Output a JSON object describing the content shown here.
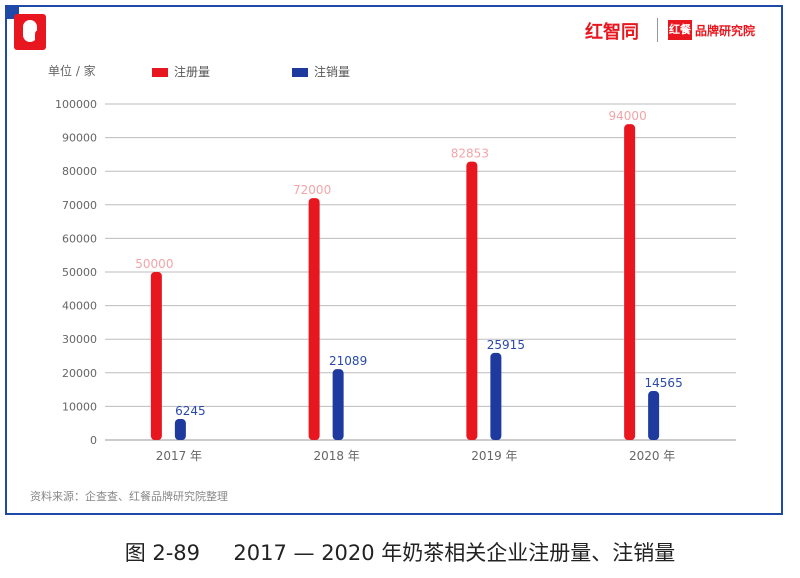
{
  "header": {
    "brand_a": "红智同",
    "brand_b_box": "红餐",
    "brand_b_text": "品牌研究院"
  },
  "unit_label": "单位 / 家",
  "source_note": "资料来源：企查查、红餐品牌研究院整理",
  "caption": "图 2-89     2017 — 2020 年奶茶相关企业注册量、注销量",
  "colors": {
    "registered": "#e8171f",
    "cancelled": "#1f3a9e",
    "frame": "#1f49a6"
  },
  "chart_data": {
    "type": "bar",
    "categories": [
      "2017 年",
      "2018 年",
      "2019 年",
      "2020 年"
    ],
    "series": [
      {
        "name": "注册量",
        "values": [
          50000,
          72000,
          82853,
          94000
        ],
        "labels": [
          "50000",
          "72000",
          "82853",
          "94000"
        ]
      },
      {
        "name": "注销量",
        "values": [
          6245,
          21089,
          25915,
          14565
        ],
        "labels": [
          "6245",
          "21089",
          "25915",
          "14565"
        ]
      }
    ],
    "ylim": [
      0,
      100000
    ],
    "yticks": [
      "0",
      "10000",
      "20000",
      "30000",
      "40000",
      "50000",
      "60000",
      "70000",
      "80000",
      "90000",
      "100000"
    ],
    "ytick_values": [
      0,
      10000,
      20000,
      30000,
      40000,
      50000,
      60000,
      70000,
      80000,
      90000,
      100000
    ],
    "grid": true,
    "legend_position": "top"
  }
}
